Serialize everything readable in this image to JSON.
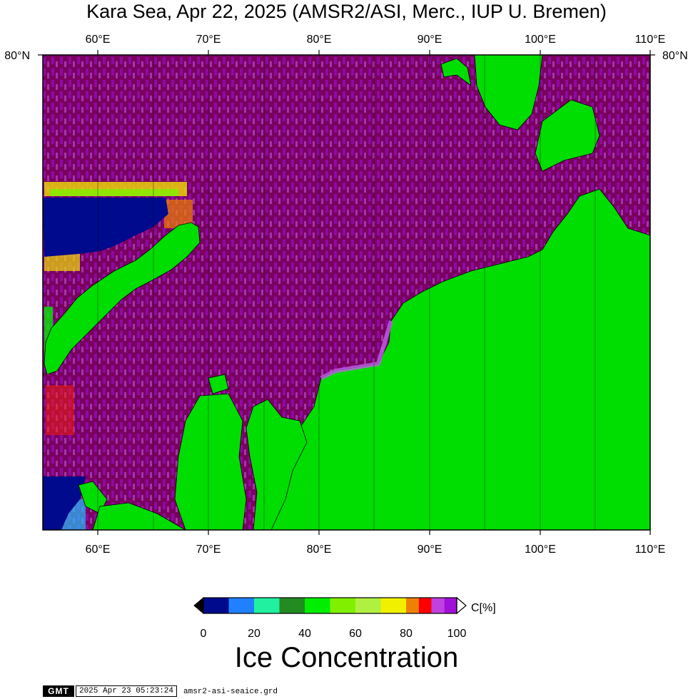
{
  "title": "Kara Sea, Apr 22, 2025 (AMSR2/ASI, Merc., IUP U. Bremen)",
  "map": {
    "lon_ticks": [
      "60°E",
      "70°E",
      "80°E",
      "90°E",
      "100°E",
      "110°E"
    ],
    "lat_label": "80°N",
    "colors": {
      "land": "#00dd00",
      "ice_high": "#7a0060",
      "ice_mid": "#a010d8",
      "ice_light": "#c060e8",
      "open_water": "#000a8c"
    }
  },
  "colorbar": {
    "unit": "C[%]",
    "ticks": [
      "0",
      "20",
      "40",
      "60",
      "80",
      "100"
    ],
    "colors": [
      "#000a8c",
      "#2080ff",
      "#20f0a0",
      "#228b22",
      "#00ee00",
      "#80f000",
      "#b0f040",
      "#f0f000",
      "#f08000",
      "#ff0000",
      "#c040e0",
      "#a010d8"
    ],
    "title": "Ice Concentration"
  },
  "footer": {
    "logo": "GMT",
    "timestamp": "2025 Apr 23 05:23:24",
    "file": "amsr2-asi-seaice.grd"
  }
}
